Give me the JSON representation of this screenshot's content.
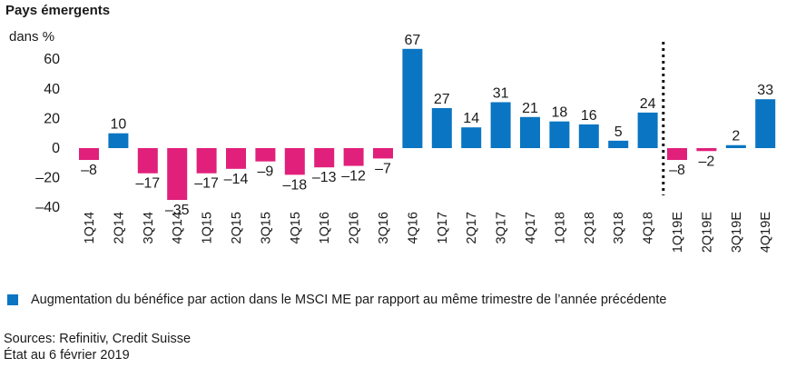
{
  "header": {
    "title": "Pays émergents",
    "unit": "dans %"
  },
  "chart_data": {
    "type": "bar",
    "title": "Pays émergents",
    "ylabel": "dans %",
    "ylim": [
      -40,
      70
    ],
    "yticks": [
      -40,
      -20,
      0,
      20,
      40,
      60
    ],
    "ytick_labels": [
      "–40",
      "–20",
      "0",
      "20",
      "40",
      "60"
    ],
    "grid": false,
    "categories": [
      "1Q14",
      "2Q14",
      "3Q14",
      "4Q14",
      "1Q15",
      "2Q15",
      "3Q15",
      "4Q15",
      "1Q16",
      "2Q16",
      "3Q16",
      "4Q16",
      "1Q17",
      "2Q17",
      "3Q17",
      "4Q17",
      "1Q18",
      "2Q18",
      "3Q18",
      "4Q18",
      "1Q19E",
      "2Q19E",
      "3Q19E",
      "4Q19E"
    ],
    "values": [
      -8,
      10,
      -17,
      -35,
      -17,
      -14,
      -9,
      -18,
      -13,
      -12,
      -7,
      67,
      27,
      14,
      31,
      21,
      18,
      16,
      5,
      24,
      -8,
      -2,
      2,
      33
    ],
    "value_labels": [
      "–8",
      "10",
      "–17",
      "–35",
      "–17",
      "–14",
      "–9",
      "–18",
      "–13",
      "–12",
      "–7",
      "67",
      "27",
      "14",
      "31",
      "21",
      "18",
      "16",
      "5",
      "24",
      "–8",
      "–2",
      "2",
      "33"
    ],
    "colors": {
      "positive": "#0a75c2",
      "negative": "#e0207a"
    },
    "forecast_divider_after": "4Q18",
    "series": [
      {
        "name": "Augmentation du bénéfice par action dans le MSCI ME par rapport au même trimestre de l’année précédente"
      }
    ]
  },
  "legend": {
    "label": "Augmentation du bénéfice par action dans le MSCI ME par rapport au même trimestre de l’année précédente",
    "color": "#0a75c2"
  },
  "footer": {
    "sources": "Sources: Refinitiv, Credit Suisse",
    "date": "État au 6 février 2019"
  }
}
